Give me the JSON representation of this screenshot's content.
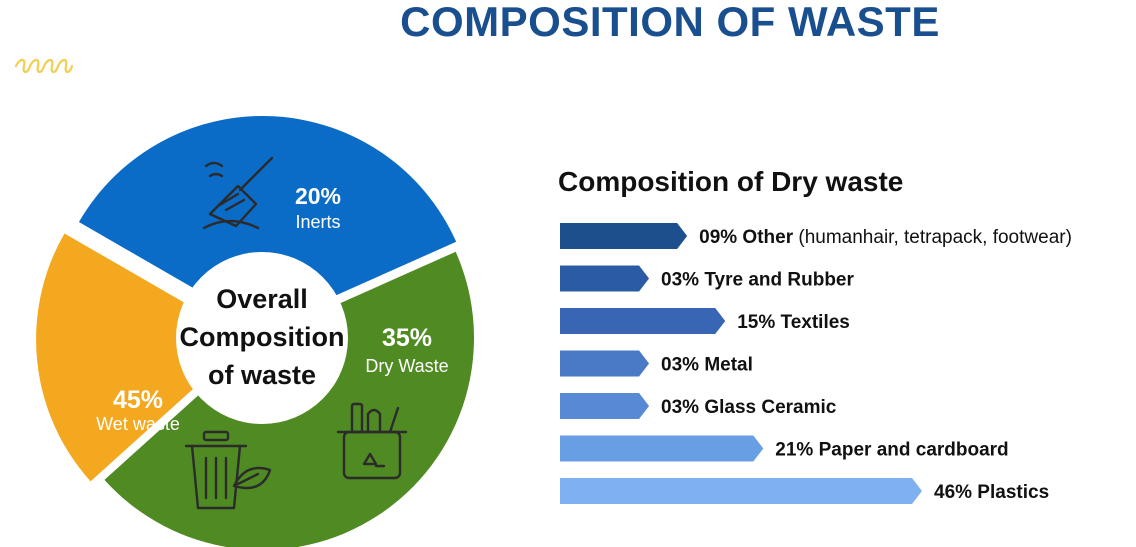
{
  "title": "COMPOSITION OF WASTE",
  "colors": {
    "title": "#1a4f8f",
    "inerts": "#f4a81f",
    "dry": "#0a6cc6",
    "wet": "#4f8a22",
    "center": "#ffffff",
    "sparkle": "#f2cf52"
  },
  "chart_data": [
    {
      "type": "pie",
      "title": "",
      "center_label": [
        "Overall",
        "Composition",
        "of waste"
      ],
      "slices": [
        {
          "label": "Inerts",
          "pct_text": "20%",
          "value": 20,
          "icon": "broom-icon"
        },
        {
          "label": "Dry Waste",
          "pct_text": "35%",
          "value": 35,
          "icon": "recycle-bin-icon"
        },
        {
          "label": "Wet waste",
          "pct_text": "45%",
          "value": 45,
          "icon": "compost-bin-icon"
        }
      ]
    },
    {
      "type": "bar",
      "orientation": "horizontal",
      "title": "Composition of Dry waste",
      "xlim": [
        0,
        46
      ],
      "categories": [
        "Other",
        "Tyre and Rubber",
        "Textiles",
        "Metal",
        "Glass Ceramic",
        "Paper and cardboard",
        "Plastics"
      ],
      "values": [
        9,
        3,
        15,
        3,
        3,
        21,
        46
      ],
      "pct_labels": [
        "09%",
        "03%",
        "15%",
        "03%",
        "03%",
        "21%",
        "46%"
      ],
      "details": [
        "(humanhair, tetrapack, footwear)",
        "",
        "",
        "",
        "",
        "",
        ""
      ],
      "bar_colors": [
        "#1d4f8c",
        "#2c5ba6",
        "#3866b5",
        "#4a79c6",
        "#5889d4",
        "#689ee3",
        "#7fb0f0"
      ]
    }
  ]
}
